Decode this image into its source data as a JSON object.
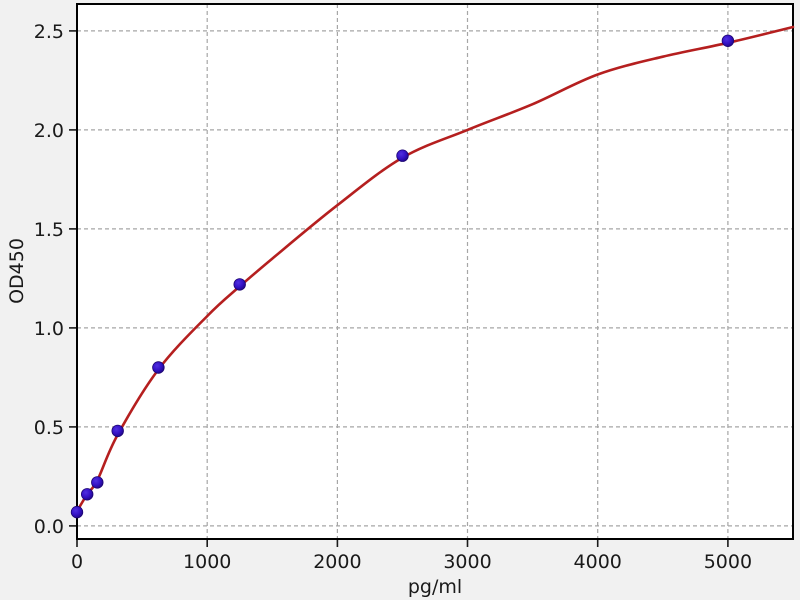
{
  "figure": {
    "background": "#f1f1f1",
    "plot_background": "#ffffff",
    "spine_color": "#000000",
    "grid_color": "#a6a6a6",
    "tick_color": "#1a1a1a",
    "text_color": "#1a1a1a"
  },
  "chart_data": {
    "type": "scatter",
    "title": "",
    "xlabel": "pg/ml",
    "ylabel": "OD450",
    "xlim": [
      0,
      5500
    ],
    "ylim": [
      -0.066,
      2.636
    ],
    "grid": "dashed",
    "legend": "none",
    "x_ticks": [
      0,
      1000,
      2000,
      3000,
      4000,
      5000
    ],
    "x_tick_labels": [
      "0",
      "1000",
      "2000",
      "3000",
      "4000",
      "5000"
    ],
    "y_ticks": [
      0.0,
      0.5,
      1.0,
      1.5,
      2.0,
      2.5
    ],
    "y_tick_labels": [
      "0.0",
      "0.5",
      "1.0",
      "1.5",
      "2.0",
      "2.5"
    ],
    "series": [
      {
        "name": "standard-points",
        "type": "scatter",
        "marker_color": "#3512c6",
        "marker_edge_color": "#1c0570",
        "x": [
          0,
          78.1,
          156.2,
          312.5,
          625,
          1250,
          2500,
          5000
        ],
        "y": [
          0.07,
          0.16,
          0.22,
          0.48,
          0.8,
          1.22,
          1.87,
          2.45
        ]
      },
      {
        "name": "fit-curve",
        "type": "line",
        "color": "#b51f1f",
        "points": [
          [
            0,
            0.075
          ],
          [
            78,
            0.16
          ],
          [
            156,
            0.23
          ],
          [
            312,
            0.46
          ],
          [
            625,
            0.79
          ],
          [
            1000,
            1.06
          ],
          [
            1250,
            1.21
          ],
          [
            1500,
            1.35
          ],
          [
            2000,
            1.62
          ],
          [
            2500,
            1.86
          ],
          [
            3000,
            2.0
          ],
          [
            3500,
            2.13
          ],
          [
            4000,
            2.28
          ],
          [
            4500,
            2.37
          ],
          [
            5000,
            2.44
          ],
          [
            5500,
            2.52
          ]
        ]
      }
    ]
  }
}
